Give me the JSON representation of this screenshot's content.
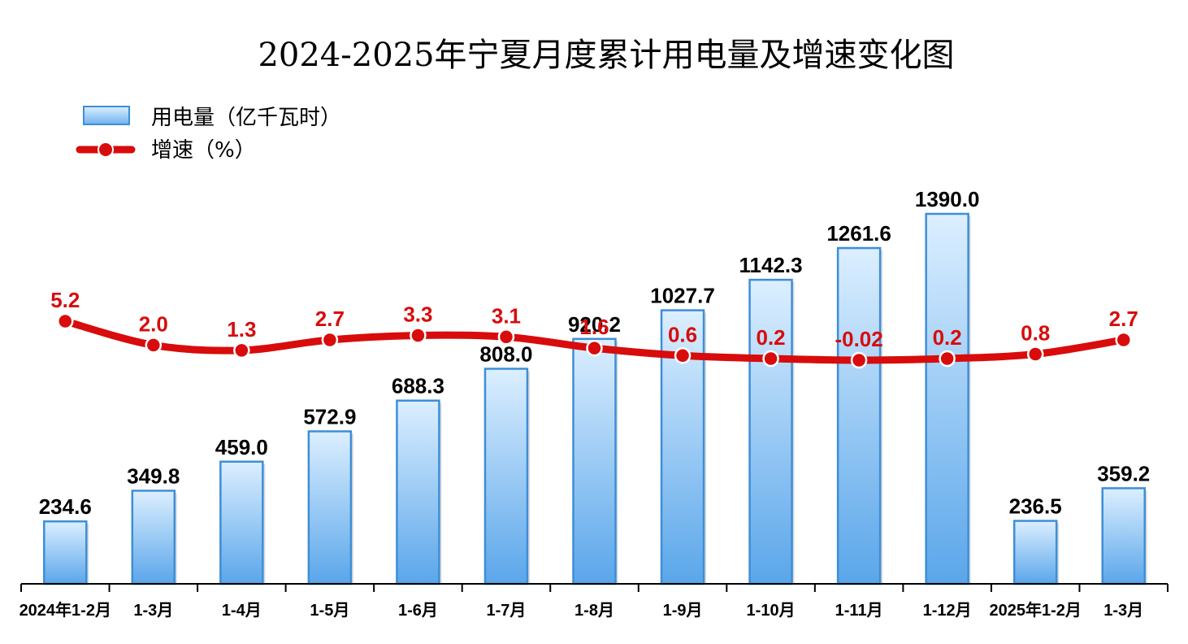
{
  "chart_data": {
    "type": "bar",
    "title": "2024-2025年宁夏月度累计用电量及增速变化图",
    "categories": [
      "2024年1-2月",
      "1-3月",
      "1-4月",
      "1-5月",
      "1-6月",
      "1-7月",
      "1-8月",
      "1-9月",
      "1-10月",
      "1-11月",
      "1-12月",
      "2025年1-2月",
      "1-3月"
    ],
    "series": [
      {
        "name": "用电量（亿千瓦时）",
        "type": "bar",
        "color": "#5aa6ea",
        "values": [
          234.6,
          349.8,
          459.0,
          572.9,
          688.3,
          808.0,
          920.2,
          1027.7,
          1142.3,
          1261.6,
          1390.0,
          236.5,
          359.2
        ],
        "labels": [
          "234.6",
          "349.8",
          "459.0",
          "572.9",
          "688.3",
          "808.0",
          "920.2",
          "1027.7",
          "1142.3",
          "1261.6",
          "1390.0",
          "236.5",
          "359.2"
        ]
      },
      {
        "name": "增速（%）",
        "type": "line",
        "color": "#d80c0c",
        "values": [
          5.2,
          2.0,
          1.3,
          2.7,
          3.3,
          3.1,
          1.6,
          0.6,
          0.2,
          -0.02,
          0.2,
          0.8,
          2.7
        ],
        "labels": [
          "5.2",
          "2.0",
          "1.3",
          "2.7",
          "3.3",
          "3.1",
          "1.6",
          "0.6",
          "0.2",
          "-0.02",
          "0.2",
          "0.8",
          "2.7"
        ]
      }
    ],
    "legend": {
      "placement": "top-left"
    },
    "grid": false
  }
}
